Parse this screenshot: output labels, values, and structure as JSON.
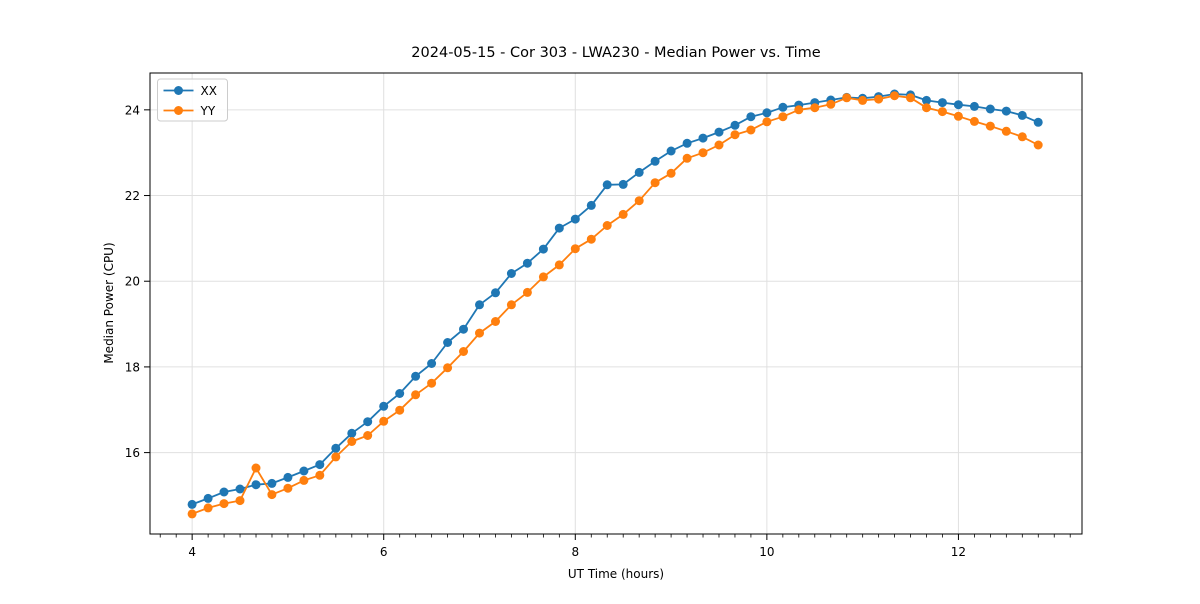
{
  "chart_data": {
    "type": "line",
    "title": "2024-05-15 - Cor 303 - LWA230 - Median Power vs. Time",
    "xlabel": "UT Time (hours)",
    "ylabel": "Median Power (CPU)",
    "xlim": [
      3.56,
      13.29
    ],
    "ylim": [
      14.1,
      24.86
    ],
    "x_major_ticks": [
      4,
      6,
      8,
      10,
      12
    ],
    "x_minor_tick_step": 0.16667,
    "y_major_ticks": [
      16,
      18,
      20,
      22,
      24
    ],
    "grid": "major-both",
    "grid_color": "#e0e0e0",
    "background_color": "#ffffff",
    "spine_color": "#000000",
    "legend_position": "upper-left",
    "marker": "circle",
    "x": [
      4.0,
      4.167,
      4.333,
      4.5,
      4.667,
      4.833,
      5.0,
      5.167,
      5.333,
      5.5,
      5.667,
      5.833,
      6.0,
      6.167,
      6.333,
      6.5,
      6.667,
      6.833,
      7.0,
      7.167,
      7.333,
      7.5,
      7.667,
      7.833,
      8.0,
      8.167,
      8.333,
      8.5,
      8.667,
      8.833,
      9.0,
      9.167,
      9.333,
      9.5,
      9.667,
      9.833,
      10.0,
      10.167,
      10.333,
      10.5,
      10.667,
      10.833,
      11.0,
      11.167,
      11.333,
      11.5,
      11.667,
      11.833,
      12.0,
      12.167,
      12.333,
      12.5,
      12.667,
      12.833
    ],
    "series": [
      {
        "name": "XX",
        "color": "#1f77b4",
        "values": [
          14.79,
          14.93,
          15.08,
          15.15,
          15.25,
          15.28,
          15.42,
          15.57,
          15.72,
          16.1,
          16.45,
          16.72,
          17.08,
          17.38,
          17.78,
          18.08,
          18.57,
          18.88,
          19.45,
          19.73,
          20.18,
          20.42,
          20.75,
          21.24,
          21.45,
          21.77,
          22.25,
          22.26,
          22.54,
          22.8,
          23.04,
          23.22,
          23.34,
          23.48,
          23.64,
          23.84,
          23.93,
          24.06,
          24.11,
          24.17,
          24.23,
          24.29,
          24.27,
          24.31,
          24.37,
          24.35,
          24.22,
          24.17,
          24.12,
          24.08,
          24.02,
          23.97,
          23.87,
          23.71
        ]
      },
      {
        "name": "YY",
        "color": "#ff7f0e",
        "values": [
          14.57,
          14.71,
          14.81,
          14.88,
          15.64,
          15.02,
          15.17,
          15.35,
          15.47,
          15.9,
          16.26,
          16.4,
          16.73,
          16.99,
          17.35,
          17.62,
          17.98,
          18.36,
          18.79,
          19.06,
          19.45,
          19.74,
          20.1,
          20.38,
          20.76,
          20.98,
          21.3,
          21.56,
          21.88,
          22.3,
          22.52,
          22.87,
          23.0,
          23.18,
          23.42,
          23.53,
          23.72,
          23.84,
          24.0,
          24.05,
          24.13,
          24.28,
          24.22,
          24.25,
          24.33,
          24.28,
          24.05,
          23.96,
          23.85,
          23.73,
          23.62,
          23.5,
          23.37,
          23.18
        ]
      }
    ]
  }
}
